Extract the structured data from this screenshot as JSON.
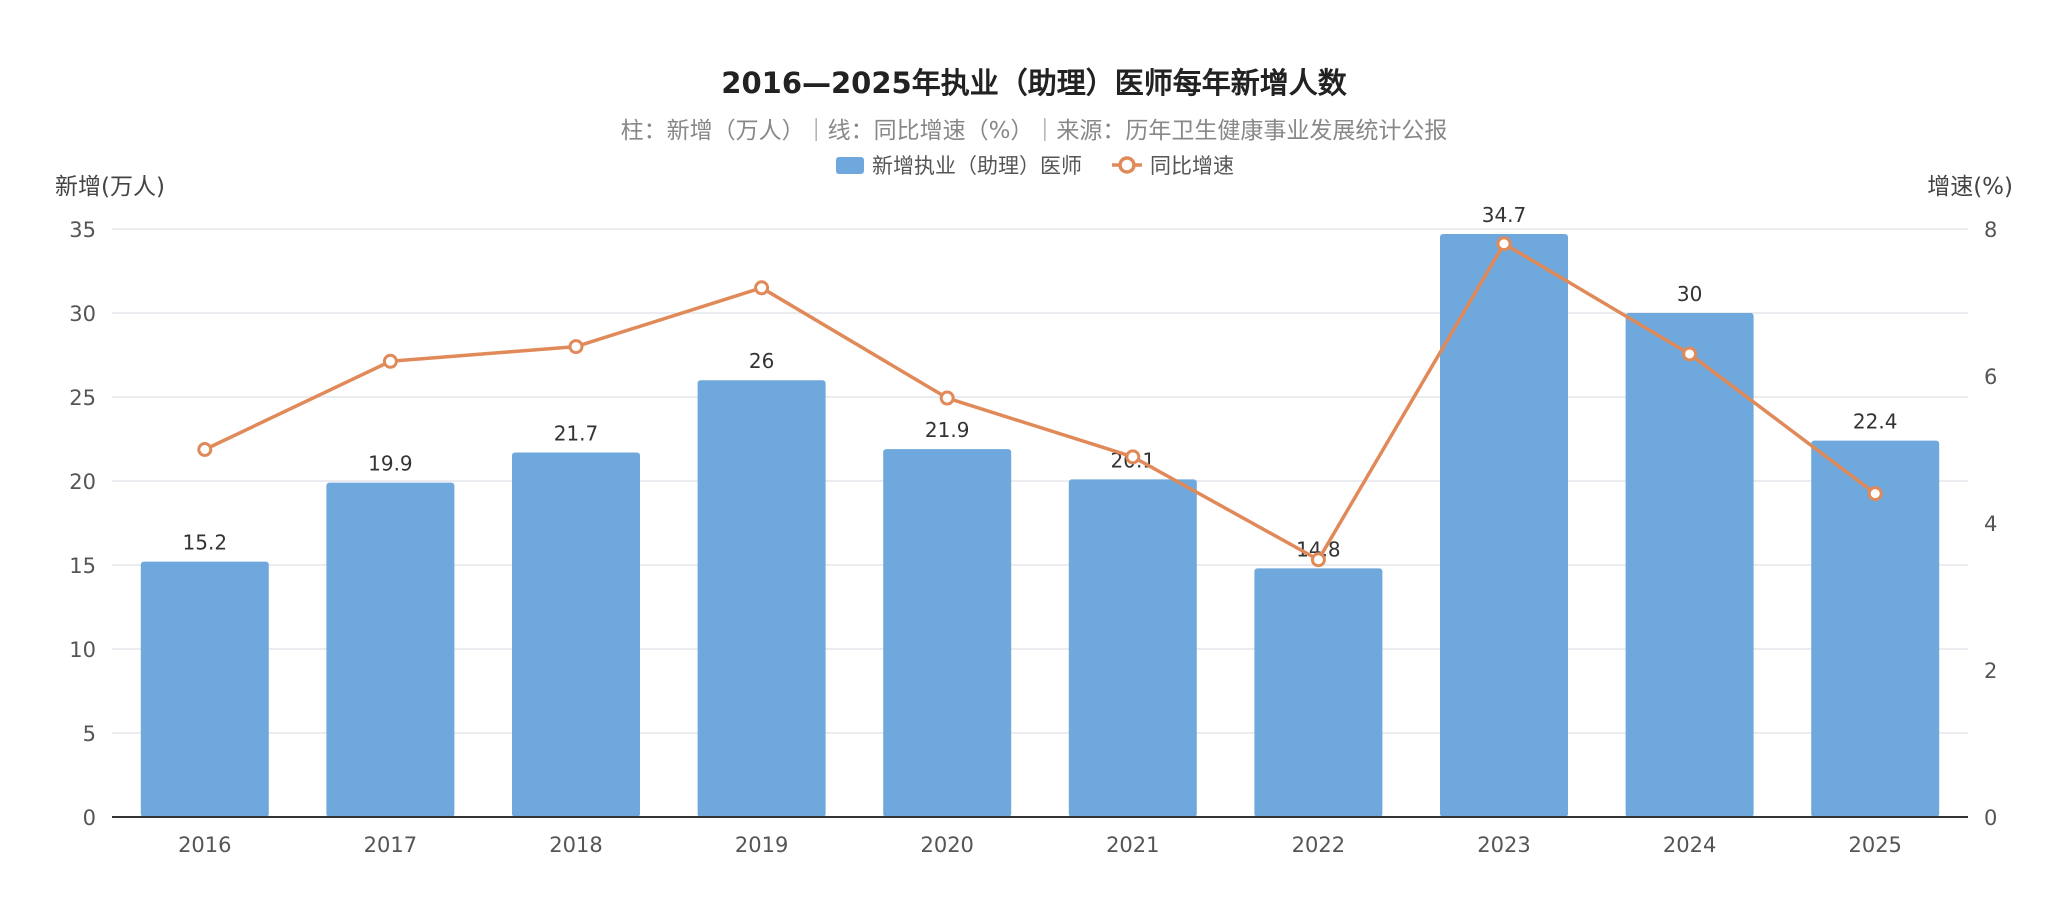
{
  "chart_data": {
    "type": "bar",
    "title": "2016—2025年执业（助理）医师每年新增人数",
    "subtitle": "柱：新增（万人）｜线：同比增速（%）｜来源：历年卫生健康事业发展统计公报",
    "categories": [
      "2016",
      "2017",
      "2018",
      "2019",
      "2020",
      "2021",
      "2022",
      "2023",
      "2024",
      "2025"
    ],
    "series": [
      {
        "name": "新增执业（助理）医师",
        "type": "bar",
        "axis": "left",
        "color": "#6fa8dc",
        "values": [
          15.2,
          19.9,
          21.7,
          26,
          21.9,
          20.1,
          14.8,
          34.7,
          30,
          22.4
        ],
        "labels": [
          "15.2",
          "19.9",
          "21.7",
          "26",
          "21.9",
          "20.1",
          "14.8",
          "34.7",
          "30",
          "22.4"
        ]
      },
      {
        "name": "同比增速",
        "type": "line",
        "axis": "right",
        "color": "#e08a5a",
        "values": [
          5.0,
          6.2,
          6.4,
          7.2,
          5.7,
          4.9,
          3.5,
          7.8,
          6.3,
          4.4
        ]
      }
    ],
    "ylabel": "新增(万人)",
    "y2label": "增速(%)",
    "ylim": [
      0,
      35
    ],
    "yticks": [
      "0",
      "5",
      "10",
      "15",
      "20",
      "25",
      "30",
      "35"
    ],
    "y2lim": [
      0,
      8
    ],
    "y2ticks": [
      "0",
      "2",
      "4",
      "6",
      "8"
    ],
    "grid": true,
    "legend_position": "top-center"
  }
}
